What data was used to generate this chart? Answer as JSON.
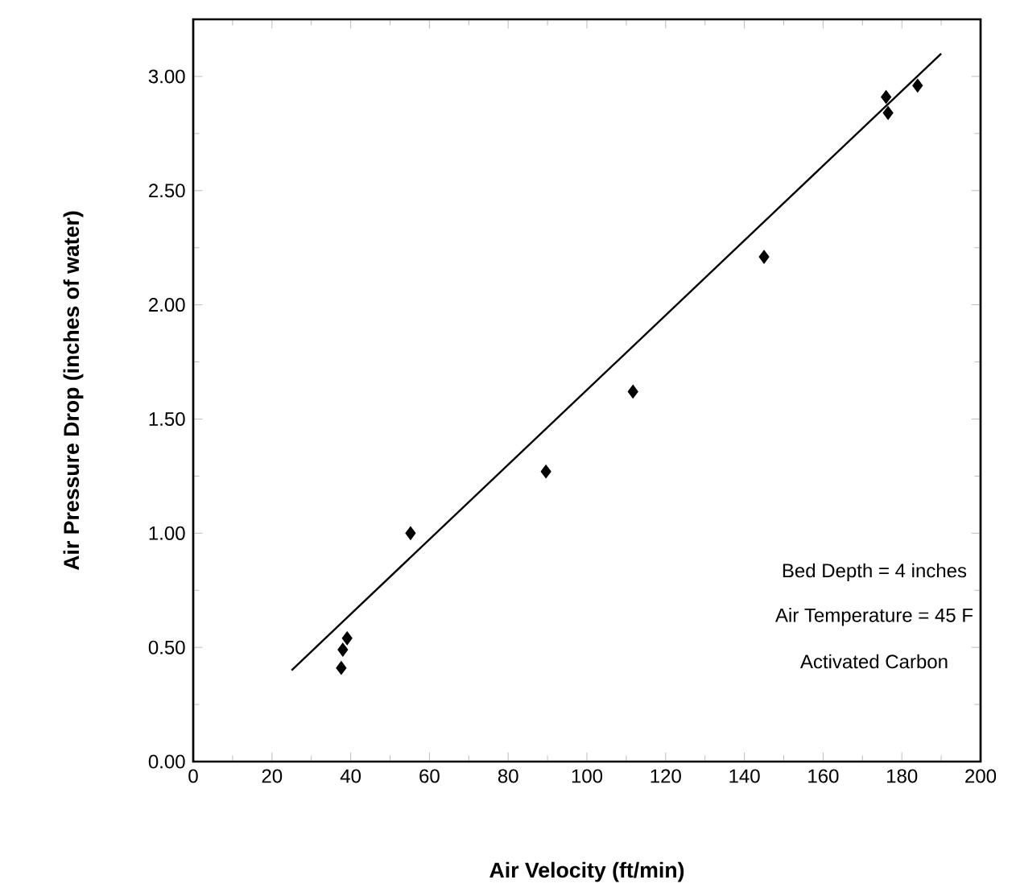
{
  "chart_data": {
    "type": "scatter",
    "xlabel": "Air Velocity   (ft/min)",
    "ylabel": "Air Pressure Drop   (inches of water)",
    "xlim": [
      0,
      200
    ],
    "xticks": [
      0,
      20,
      40,
      60,
      80,
      100,
      120,
      140,
      160,
      180,
      200
    ],
    "ylim": [
      0,
      3.25
    ],
    "yticks": [
      {
        "value": 0,
        "label": "0.00"
      },
      {
        "value": 0.5,
        "label": "0.50"
      },
      {
        "value": 1,
        "label": "1.00"
      },
      {
        "value": 1.5,
        "label": "1.50"
      },
      {
        "value": 2,
        "label": "2.00"
      },
      {
        "value": 2.5,
        "label": "2.50"
      },
      {
        "value": 3,
        "label": "3.00"
      }
    ],
    "series": [
      {
        "type": "scatter",
        "color": "#000000",
        "marker": "diamond",
        "x": [
          37.6,
          38,
          39.1,
          55.2,
          89.6,
          111.7,
          145,
          176,
          176.5,
          184
        ],
        "values": [
          0.41,
          0.49,
          0.54,
          1.0,
          1.27,
          1.62,
          2.21,
          2.91,
          2.84,
          2.96
        ]
      },
      {
        "type": "line",
        "color": "#000000",
        "marker": "none",
        "line_style": "solid",
        "x": [
          25,
          190
        ],
        "values": [
          0.4,
          3.1
        ]
      }
    ],
    "annotations": [
      "Bed Depth = 4 inches",
      "Air Temperature = 45 F",
      "Activated Carbon"
    ]
  }
}
